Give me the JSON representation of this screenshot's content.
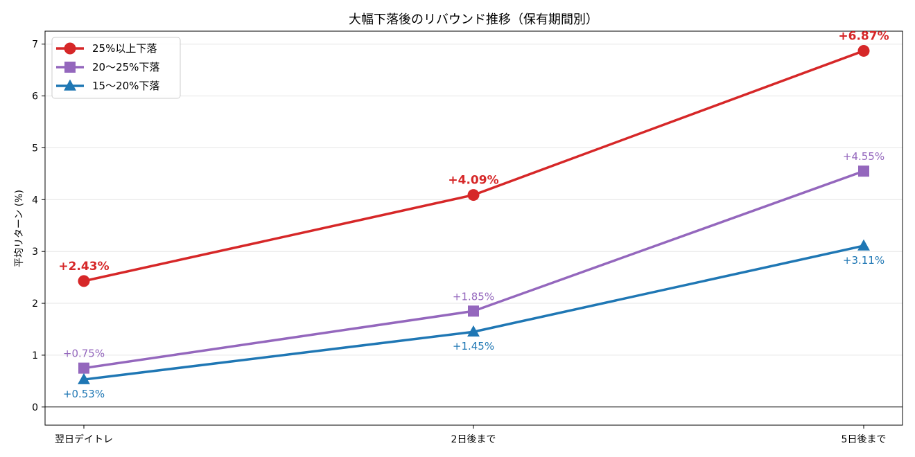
{
  "chart_data": {
    "type": "line",
    "title": "大幅下落後のリバウンド推移（保有期間別）",
    "xlabel": "",
    "ylabel": "平均リターン (%)",
    "categories": [
      "翌日デイトレ",
      "2日後まで",
      "5日後まで"
    ],
    "ylim": [
      -0.35,
      7.25
    ],
    "yticks": [
      0,
      1,
      2,
      3,
      4,
      5,
      6,
      7
    ],
    "grid": "horizontal",
    "legend_position": "top-left",
    "series": [
      {
        "name": "25%以上下落",
        "values": [
          2.43,
          4.09,
          6.87
        ],
        "labels": [
          "+2.43%",
          "+4.09%",
          "+6.87%"
        ],
        "label_position": "above",
        "label_bold": true,
        "marker": "circle",
        "color": "#d62728"
      },
      {
        "name": "20～25%下落",
        "values": [
          0.75,
          1.85,
          4.55
        ],
        "labels": [
          "+0.75%",
          "+1.85%",
          "+4.55%"
        ],
        "label_position": "above",
        "label_bold": false,
        "marker": "square",
        "color": "#9467bd"
      },
      {
        "name": "15～20%下落",
        "values": [
          0.53,
          1.45,
          3.11
        ],
        "labels": [
          "+0.53%",
          "+1.45%",
          "+3.11%"
        ],
        "label_position": "below",
        "label_bold": false,
        "marker": "triangle",
        "color": "#1f77b4"
      }
    ]
  }
}
